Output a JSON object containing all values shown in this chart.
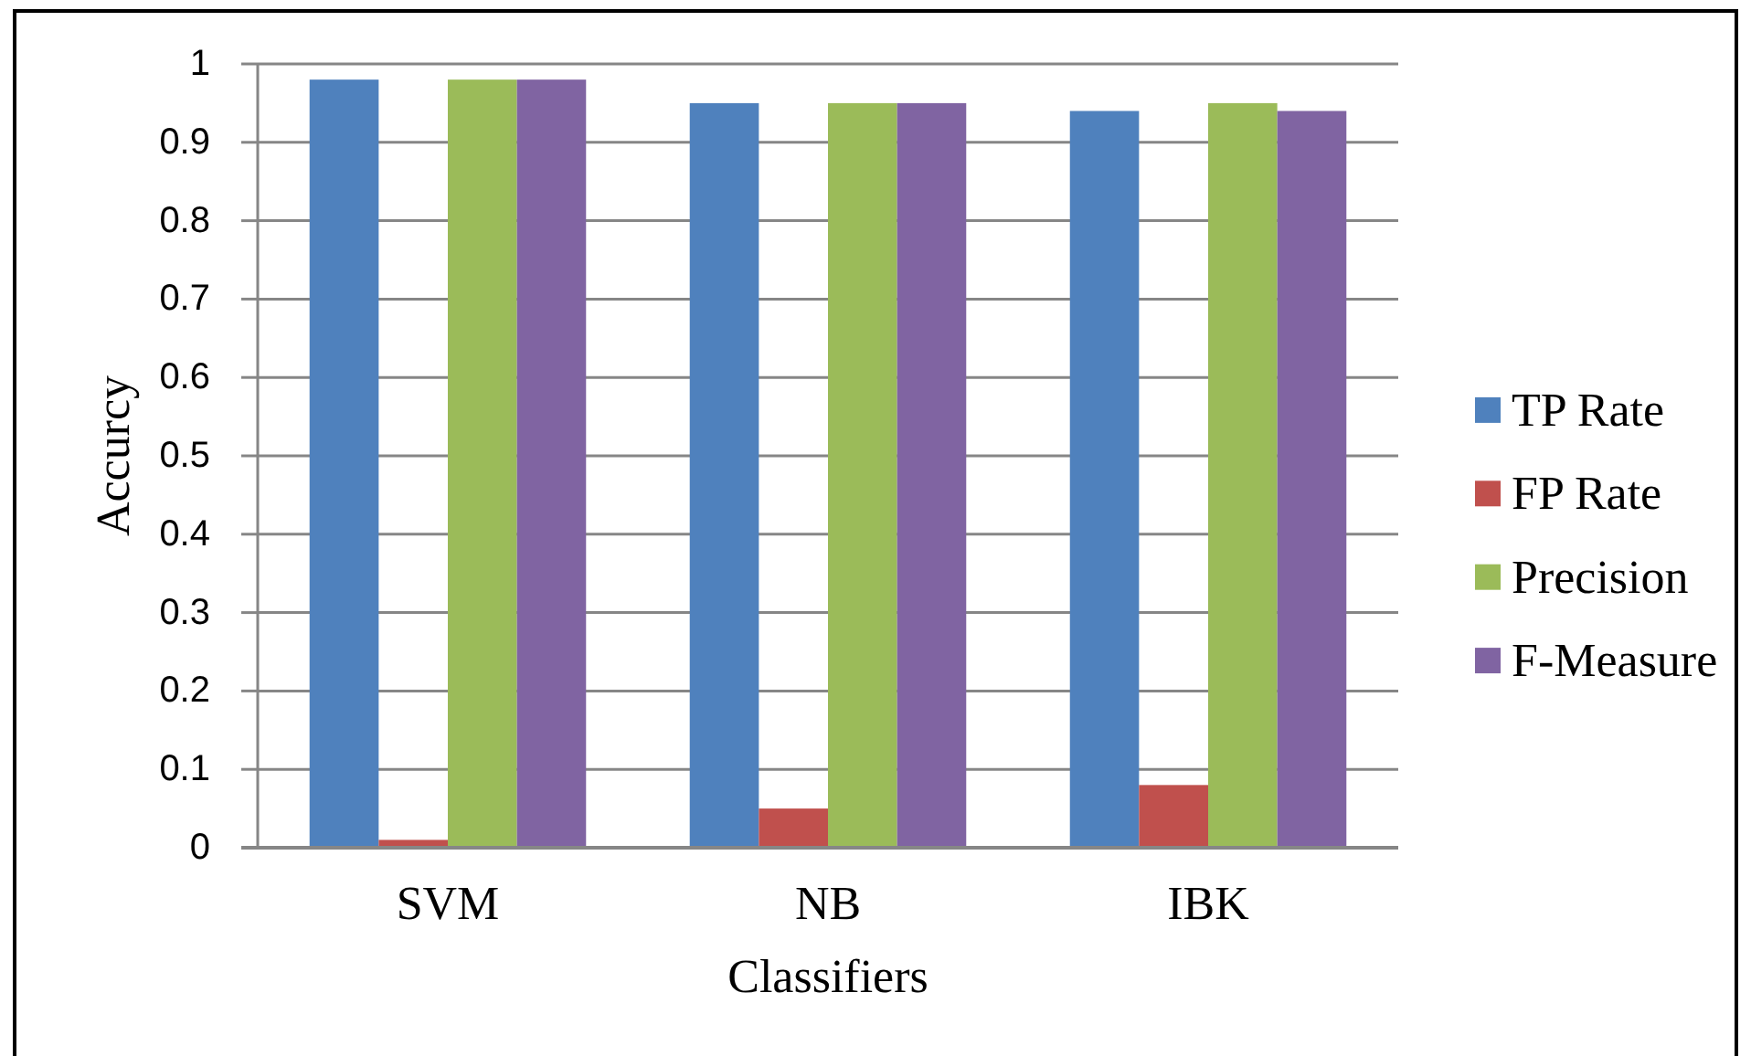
{
  "chart_data": {
    "type": "bar",
    "xlabel": "Classifiers",
    "ylabel": "Accurcy",
    "categories": [
      "SVM",
      "NB",
      "IBK"
    ],
    "series": [
      {
        "name": "TP Rate",
        "color": "#4f81bd",
        "values": [
          0.98,
          0.95,
          0.94
        ]
      },
      {
        "name": "FP Rate",
        "color": "#c0504d",
        "values": [
          0.01,
          0.05,
          0.08
        ]
      },
      {
        "name": "Precision",
        "color": "#9bbb59",
        "values": [
          0.98,
          0.95,
          0.95
        ]
      },
      {
        "name": "F-Measure",
        "color": "#8064a2",
        "values": [
          0.98,
          0.95,
          0.94
        ]
      }
    ],
    "ylim": [
      0,
      1
    ],
    "yticks": [
      0,
      0.1,
      0.2,
      0.3,
      0.4,
      0.5,
      0.6,
      0.7,
      0.8,
      0.9,
      1
    ],
    "grid": "y",
    "legend": "right"
  }
}
